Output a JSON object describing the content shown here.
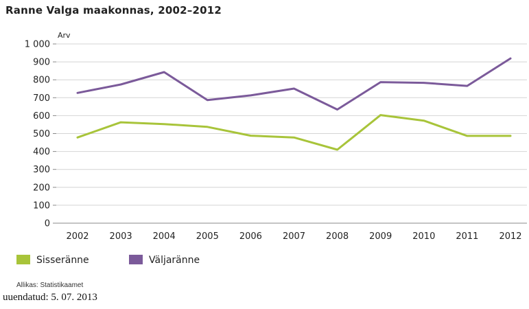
{
  "chart_data": {
    "type": "line",
    "title": "Ranne Valga maakonnas, 2002–2012",
    "ylabel": "Arv",
    "ylim": [
      0,
      1000
    ],
    "ytick_labels": [
      "0",
      "100",
      "200",
      "300",
      "400",
      "500",
      "600",
      "700",
      "800",
      "900",
      "1 000"
    ],
    "categories": [
      "2002",
      "2003",
      "2004",
      "2005",
      "2006",
      "2007",
      "2008",
      "2009",
      "2010",
      "2011",
      "2012"
    ],
    "series": [
      {
        "name": "Sisseränne",
        "color": "#a8c43a",
        "values": [
          478,
          563,
          553,
          537,
          488,
          478,
          410,
          603,
          572,
          487,
          487
        ]
      },
      {
        "name": "Väljaränne",
        "color": "#7b5a9a",
        "values": [
          727,
          774,
          843,
          687,
          713,
          751,
          634,
          787,
          783,
          766,
          919
        ]
      }
    ],
    "grid": true,
    "legend": "bottom-left"
  },
  "source": "Allikas: Statistikaamet",
  "updated": "uuendatud: 5. 07. 2013"
}
